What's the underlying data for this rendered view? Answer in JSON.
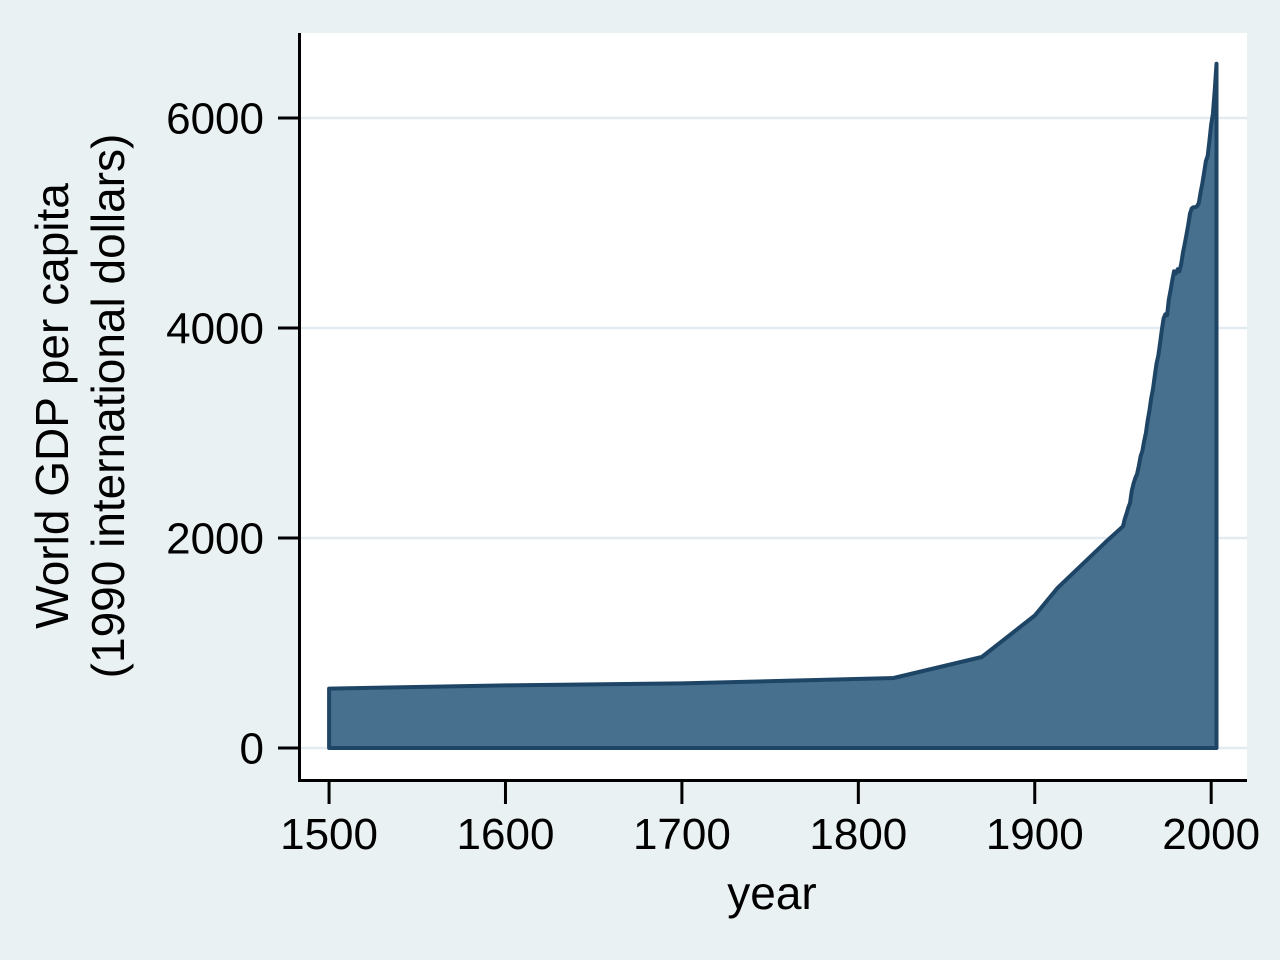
{
  "figure": {
    "background_color": "#EAF1F3",
    "plot_background_color": "#FFFFFF",
    "grid_color": "#E2ECF0",
    "axis_color": "#000000",
    "text_color": "#000000",
    "area_fill_color": "#47708F",
    "area_stroke_color": "#1E4566"
  },
  "chart_data": {
    "type": "area",
    "title": "",
    "xlabel": "year",
    "ylabel_line1": "World GDP per capita",
    "ylabel_line2": "(1990 international dollars)",
    "x_ticks": [
      1500,
      1600,
      1700,
      1800,
      1900,
      2000
    ],
    "y_ticks": [
      0,
      2000,
      4000,
      6000
    ],
    "xlim": [
      1482.4,
      2020.3
    ],
    "ylim": [
      -323.8,
      6809.5
    ],
    "grid": true,
    "legend": "none",
    "baseline_value": 0,
    "series": [
      {
        "name": "World GDP per capita (1990 international dollars)",
        "points": [
          [
            1500,
            566
          ],
          [
            1600,
            596
          ],
          [
            1700,
            615
          ],
          [
            1820,
            667
          ],
          [
            1870,
            867
          ],
          [
            1900,
            1262
          ],
          [
            1913,
            1526
          ],
          [
            1940,
            1958
          ],
          [
            1950,
            2111
          ],
          [
            1951,
            2180
          ],
          [
            1952,
            2230
          ],
          [
            1953,
            2290
          ],
          [
            1954,
            2330
          ],
          [
            1955,
            2450
          ],
          [
            1956,
            2520
          ],
          [
            1957,
            2570
          ],
          [
            1958,
            2610
          ],
          [
            1959,
            2690
          ],
          [
            1960,
            2777
          ],
          [
            1961,
            2830
          ],
          [
            1962,
            2920
          ],
          [
            1963,
            3000
          ],
          [
            1964,
            3120
          ],
          [
            1965,
            3210
          ],
          [
            1966,
            3330
          ],
          [
            1967,
            3420
          ],
          [
            1968,
            3540
          ],
          [
            1969,
            3660
          ],
          [
            1970,
            3736
          ],
          [
            1971,
            3850
          ],
          [
            1972,
            3980
          ],
          [
            1973,
            4091
          ],
          [
            1974,
            4130
          ],
          [
            1975,
            4122
          ],
          [
            1976,
            4270
          ],
          [
            1977,
            4360
          ],
          [
            1978,
            4460
          ],
          [
            1979,
            4540
          ],
          [
            1980,
            4520
          ],
          [
            1981,
            4560
          ],
          [
            1982,
            4540
          ],
          [
            1983,
            4610
          ],
          [
            1984,
            4720
          ],
          [
            1985,
            4800
          ],
          [
            1986,
            4890
          ],
          [
            1987,
            4980
          ],
          [
            1988,
            5090
          ],
          [
            1989,
            5140
          ],
          [
            1990,
            5150
          ],
          [
            1991,
            5150
          ],
          [
            1992,
            5160
          ],
          [
            1993,
            5190
          ],
          [
            1994,
            5290
          ],
          [
            1995,
            5380
          ],
          [
            1996,
            5480
          ],
          [
            1997,
            5590
          ],
          [
            1998,
            5640
          ],
          [
            1999,
            5780
          ],
          [
            2000,
            5940
          ],
          [
            2001,
            6040
          ],
          [
            2002,
            6260
          ],
          [
            2003,
            6516
          ]
        ]
      }
    ]
  }
}
